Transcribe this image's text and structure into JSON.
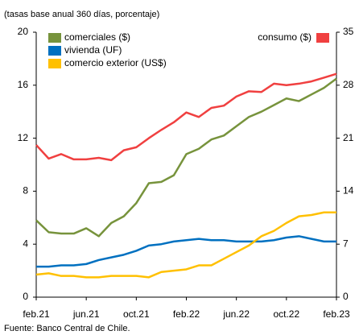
{
  "chart_data": {
    "type": "line",
    "subtitle": "(tasas base anual 360 días, porcentaje)",
    "source": "Fuente: Banco Central de Chile.",
    "categories": [
      "feb.21",
      null,
      null,
      null,
      "jun.21",
      null,
      null,
      null,
      "oct.21",
      null,
      null,
      null,
      "feb.22",
      null,
      null,
      null,
      "jun.22",
      null,
      null,
      null,
      "oct.22",
      null,
      null,
      null,
      "feb.23"
    ],
    "ylim": [
      0,
      20
    ],
    "yticks": [
      0,
      4,
      8,
      12,
      16,
      20
    ],
    "y2lim": [
      0,
      35
    ],
    "y2ticks": [
      0,
      7,
      14,
      21,
      28,
      35
    ],
    "series": [
      {
        "name": "comerciales ($)",
        "color": "#77933c",
        "values": [
          5.8,
          4.9,
          4.8,
          4.8,
          5.2,
          4.6,
          5.6,
          6.1,
          7.1,
          8.6,
          8.7,
          9.2,
          10.8,
          11.2,
          11.9,
          12.2,
          12.9,
          13.6,
          14.0,
          14.5,
          15.0,
          14.8,
          15.3,
          15.8,
          16.5
        ]
      },
      {
        "name": "vivienda (UF)",
        "color": "#0070c0",
        "values": [
          2.3,
          2.3,
          2.4,
          2.4,
          2.5,
          2.8,
          3.0,
          3.2,
          3.5,
          3.9,
          4.0,
          4.2,
          4.3,
          4.4,
          4.3,
          4.3,
          4.2,
          4.2,
          4.2,
          4.3,
          4.5,
          4.6,
          4.4,
          4.2,
          4.2
        ]
      },
      {
        "name": "comercio exterior (US$)",
        "color": "#ffc000",
        "values": [
          1.7,
          1.8,
          1.6,
          1.6,
          1.5,
          1.5,
          1.6,
          1.6,
          1.6,
          1.5,
          1.9,
          2.0,
          2.1,
          2.4,
          2.4,
          2.9,
          3.4,
          3.9,
          4.6,
          5.0,
          5.6,
          6.1,
          6.2,
          6.4,
          6.4
        ]
      },
      {
        "name": "consumo ($)",
        "color": "#f04040",
        "axis": "y2",
        "values": [
          20.1,
          18.3,
          18.9,
          18.2,
          18.2,
          18.4,
          18.1,
          19.4,
          19.8,
          21.0,
          22.1,
          23.1,
          24.4,
          23.8,
          25.0,
          25.3,
          26.5,
          27.2,
          27.1,
          28.2,
          28.0,
          28.2,
          28.5,
          29.0,
          29.5
        ]
      }
    ]
  }
}
